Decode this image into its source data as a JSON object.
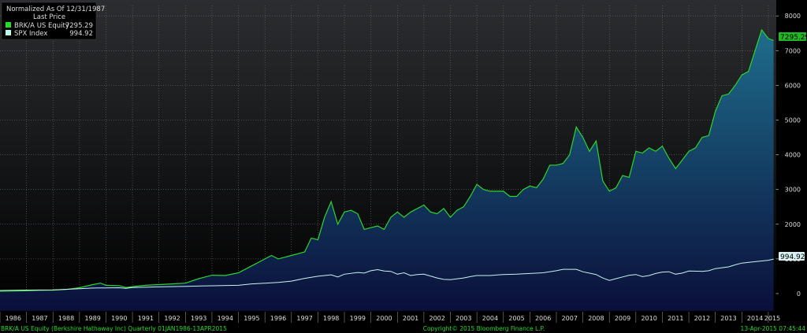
{
  "legend": {
    "header_line1": "Normalized As Of 12/31/1987",
    "header_line2": "Last Price",
    "items": [
      {
        "label": "BRK/A US Equity",
        "value": "7295.29",
        "color": "#22dd22"
      },
      {
        "label": "SPX Index",
        "value": "994.92",
        "color": "#b8ffe8"
      }
    ]
  },
  "footer": {
    "left": "BRK/A US Equity (Berkshire Hathaway Inc)  Quarterly 01JAN1986-13APR2015",
    "center": "Copyright© 2015 Bloomberg Finance L.P.",
    "right": "13-Apr-2015 07:45:44"
  },
  "colors": {
    "background_top": "#2b2d30",
    "background_bottom": "#000000",
    "brk_line": "#2bd62b",
    "brk_fill_top": "#1f6f8e",
    "brk_fill_bottom": "#0a0f3a",
    "spx_line": "#c8f4f0",
    "axis_text": "#dddddd",
    "grid": "#6e6e6e",
    "brk_label_bg": "#22b822",
    "spx_label_bg": "#d8f0f0"
  },
  "chart_data": {
    "type": "area",
    "xlabel": "",
    "ylabel": "",
    "ylim": [
      -500,
      8300
    ],
    "yticks": [
      0,
      1000,
      2000,
      3000,
      4000,
      5000,
      6000,
      7000,
      8000
    ],
    "xlim": [
      1986.0,
      2015.3
    ],
    "year_labels": [
      "1986",
      "1987",
      "1988",
      "1989",
      "1990",
      "1991",
      "1992",
      "1993",
      "1994",
      "1995",
      "1996",
      "1997",
      "1998",
      "1999",
      "2000",
      "2001",
      "2002",
      "2003",
      "2004",
      "2005",
      "2006",
      "2007",
      "2008",
      "2009",
      "2010",
      "2011",
      "2012",
      "2013",
      "2014",
      "2015"
    ],
    "grid": true,
    "legend_position": "top-left",
    "series": [
      {
        "name": "BRK/A US Equity",
        "last_label": "7295.29",
        "points": [
          [
            1986.0,
            70
          ],
          [
            1986.5,
            75
          ],
          [
            1987.0,
            80
          ],
          [
            1987.5,
            95
          ],
          [
            1988.0,
            100
          ],
          [
            1988.5,
            120
          ],
          [
            1989.0,
            170
          ],
          [
            1989.5,
            260
          ],
          [
            1989.8,
            300
          ],
          [
            1990.0,
            240
          ],
          [
            1990.5,
            230
          ],
          [
            1990.75,
            175
          ],
          [
            1991.0,
            200
          ],
          [
            1991.5,
            240
          ],
          [
            1992.0,
            260
          ],
          [
            1992.5,
            280
          ],
          [
            1993.0,
            300
          ],
          [
            1993.5,
            430
          ],
          [
            1994.0,
            530
          ],
          [
            1994.5,
            520
          ],
          [
            1995.0,
            600
          ],
          [
            1995.5,
            800
          ],
          [
            1996.0,
            1000
          ],
          [
            1996.25,
            1100
          ],
          [
            1996.5,
            1000
          ],
          [
            1997.0,
            1100
          ],
          [
            1997.5,
            1200
          ],
          [
            1997.75,
            1600
          ],
          [
            1998.0,
            1550
          ],
          [
            1998.25,
            2200
          ],
          [
            1998.5,
            2650
          ],
          [
            1998.75,
            2000
          ],
          [
            1999.0,
            2350
          ],
          [
            1999.25,
            2400
          ],
          [
            1999.5,
            2300
          ],
          [
            1999.75,
            1850
          ],
          [
            2000.0,
            1900
          ],
          [
            2000.25,
            1950
          ],
          [
            2000.5,
            1850
          ],
          [
            2000.75,
            2200
          ],
          [
            2001.0,
            2350
          ],
          [
            2001.25,
            2200
          ],
          [
            2001.5,
            2350
          ],
          [
            2001.75,
            2450
          ],
          [
            2002.0,
            2550
          ],
          [
            2002.25,
            2350
          ],
          [
            2002.5,
            2300
          ],
          [
            2002.75,
            2450
          ],
          [
            2003.0,
            2200
          ],
          [
            2003.25,
            2400
          ],
          [
            2003.5,
            2500
          ],
          [
            2003.75,
            2800
          ],
          [
            2004.0,
            3150
          ],
          [
            2004.25,
            3000
          ],
          [
            2004.5,
            2950
          ],
          [
            2004.75,
            2950
          ],
          [
            2005.0,
            2950
          ],
          [
            2005.25,
            2800
          ],
          [
            2005.5,
            2800
          ],
          [
            2005.75,
            3000
          ],
          [
            2006.0,
            3100
          ],
          [
            2006.25,
            3050
          ],
          [
            2006.5,
            3300
          ],
          [
            2006.75,
            3700
          ],
          [
            2007.0,
            3700
          ],
          [
            2007.25,
            3750
          ],
          [
            2007.5,
            4000
          ],
          [
            2007.75,
            4800
          ],
          [
            2008.0,
            4500
          ],
          [
            2008.25,
            4100
          ],
          [
            2008.5,
            4400
          ],
          [
            2008.75,
            3250
          ],
          [
            2009.0,
            2950
          ],
          [
            2009.25,
            3050
          ],
          [
            2009.5,
            3400
          ],
          [
            2009.75,
            3350
          ],
          [
            2010.0,
            4100
          ],
          [
            2010.25,
            4050
          ],
          [
            2010.5,
            4200
          ],
          [
            2010.75,
            4100
          ],
          [
            2011.0,
            4250
          ],
          [
            2011.25,
            3900
          ],
          [
            2011.5,
            3600
          ],
          [
            2011.75,
            3850
          ],
          [
            2012.0,
            4100
          ],
          [
            2012.25,
            4200
          ],
          [
            2012.5,
            4500
          ],
          [
            2012.75,
            4550
          ],
          [
            2013.0,
            5250
          ],
          [
            2013.25,
            5700
          ],
          [
            2013.5,
            5750
          ],
          [
            2013.75,
            6000
          ],
          [
            2014.0,
            6300
          ],
          [
            2014.25,
            6400
          ],
          [
            2014.5,
            7000
          ],
          [
            2014.75,
            7600
          ],
          [
            2015.0,
            7350
          ],
          [
            2015.2,
            7295
          ]
        ]
      },
      {
        "name": "SPX Index",
        "last_label": "994.92",
        "points": [
          [
            1986.0,
            90
          ],
          [
            1987.0,
            100
          ],
          [
            1988.0,
            105
          ],
          [
            1989.0,
            140
          ],
          [
            1989.5,
            160
          ],
          [
            1990.0,
            165
          ],
          [
            1990.5,
            170
          ],
          [
            1990.75,
            150
          ],
          [
            1991.0,
            175
          ],
          [
            1992.0,
            195
          ],
          [
            1993.0,
            210
          ],
          [
            1994.0,
            225
          ],
          [
            1995.0,
            240
          ],
          [
            1995.5,
            280
          ],
          [
            1996.0,
            300
          ],
          [
            1996.5,
            320
          ],
          [
            1997.0,
            360
          ],
          [
            1997.5,
            440
          ],
          [
            1998.0,
            500
          ],
          [
            1998.5,
            540
          ],
          [
            1998.75,
            480
          ],
          [
            1999.0,
            560
          ],
          [
            1999.5,
            610
          ],
          [
            1999.75,
            590
          ],
          [
            2000.0,
            660
          ],
          [
            2000.25,
            690
          ],
          [
            2000.5,
            650
          ],
          [
            2000.75,
            640
          ],
          [
            2001.0,
            560
          ],
          [
            2001.25,
            600
          ],
          [
            2001.5,
            520
          ],
          [
            2001.75,
            550
          ],
          [
            2002.0,
            560
          ],
          [
            2002.5,
            450
          ],
          [
            2002.75,
            410
          ],
          [
            2003.0,
            400
          ],
          [
            2003.5,
            450
          ],
          [
            2003.75,
            490
          ],
          [
            2004.0,
            520
          ],
          [
            2004.5,
            520
          ],
          [
            2005.0,
            550
          ],
          [
            2005.5,
            560
          ],
          [
            2006.0,
            580
          ],
          [
            2006.5,
            600
          ],
          [
            2007.0,
            660
          ],
          [
            2007.25,
            700
          ],
          [
            2007.75,
            700
          ],
          [
            2008.0,
            630
          ],
          [
            2008.5,
            550
          ],
          [
            2008.75,
            450
          ],
          [
            2009.0,
            380
          ],
          [
            2009.25,
            430
          ],
          [
            2009.5,
            480
          ],
          [
            2009.75,
            530
          ],
          [
            2010.0,
            550
          ],
          [
            2010.25,
            490
          ],
          [
            2010.5,
            520
          ],
          [
            2010.75,
            580
          ],
          [
            2011.0,
            620
          ],
          [
            2011.25,
            630
          ],
          [
            2011.5,
            560
          ],
          [
            2011.75,
            590
          ],
          [
            2012.0,
            650
          ],
          [
            2012.5,
            640
          ],
          [
            2012.75,
            660
          ],
          [
            2013.0,
            720
          ],
          [
            2013.5,
            770
          ],
          [
            2013.75,
            830
          ],
          [
            2014.0,
            880
          ],
          [
            2014.5,
            920
          ],
          [
            2014.75,
            940
          ],
          [
            2015.0,
            960
          ],
          [
            2015.2,
            995
          ]
        ]
      }
    ]
  }
}
